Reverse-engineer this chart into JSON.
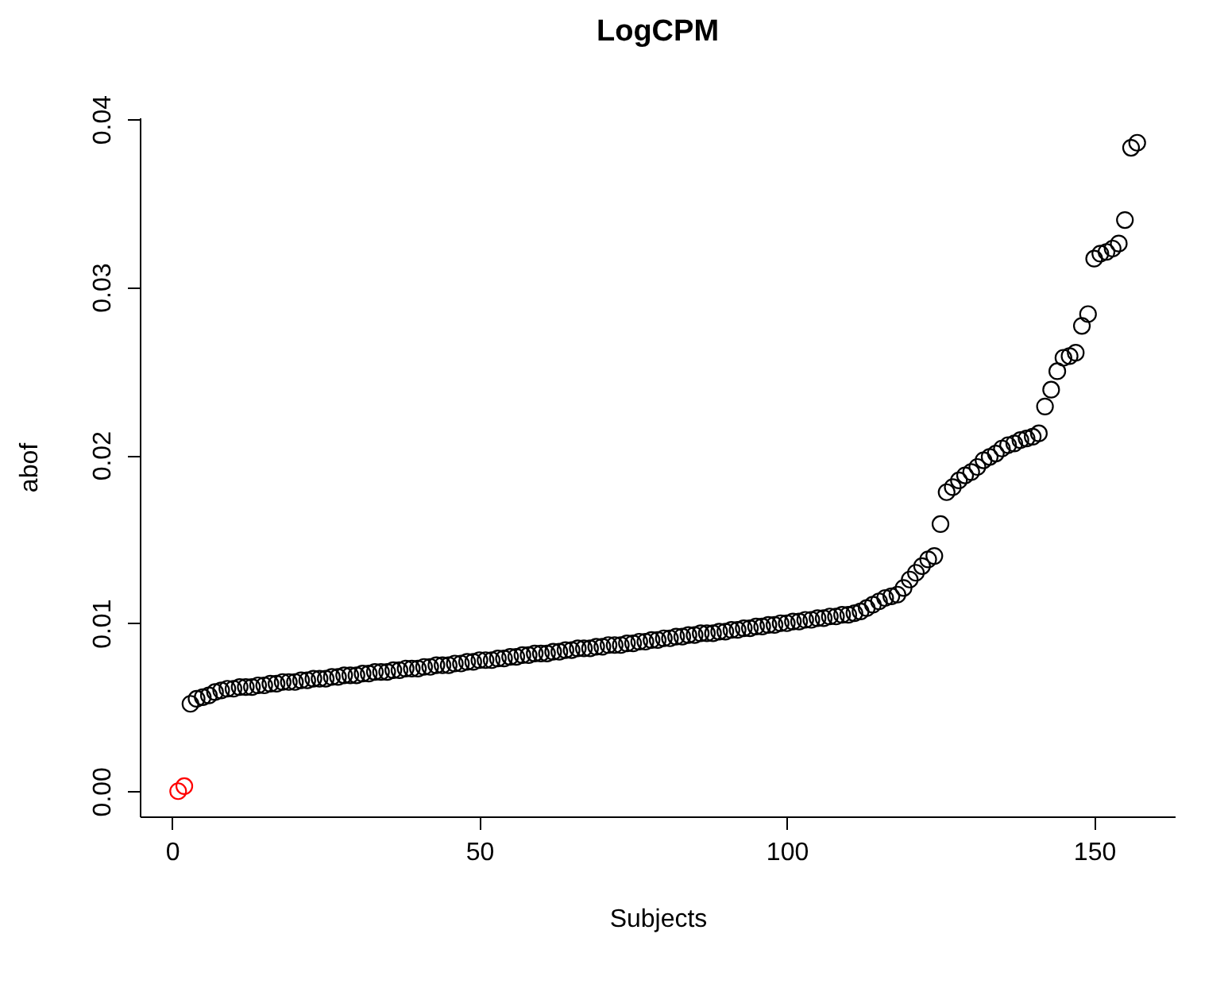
{
  "chart_data": {
    "type": "scatter",
    "title": "LogCPM",
    "xlabel": "Subjects",
    "ylabel": "abof",
    "marker": "circle",
    "grid": false,
    "xlim": [
      -5.24,
      163.24
    ],
    "ylim": [
      -0.0015,
      0.0401
    ],
    "xticks": [
      0,
      50,
      100,
      150
    ],
    "yticks": [
      {
        "value": 0,
        "label": "0.00"
      },
      {
        "value": 0.01,
        "label": "0.01"
      },
      {
        "value": 0.02,
        "label": "0.02"
      },
      {
        "value": 0.03,
        "label": "0.03"
      },
      {
        "value": 0.04,
        "label": "0.04"
      }
    ],
    "series": [
      {
        "color": "#ff0000",
        "x": [
          1,
          2
        ],
        "values": [
          0.0,
          0.0003
        ]
      },
      {
        "color": "#000000",
        "x": [
          3,
          4,
          5,
          6,
          7,
          8,
          9,
          10,
          11,
          12,
          13,
          14,
          15,
          16,
          17,
          18,
          19,
          20,
          21,
          22,
          23,
          24,
          25,
          26,
          27,
          28,
          29,
          30,
          31,
          32,
          33,
          34,
          35,
          36,
          37,
          38,
          39,
          40,
          41,
          42,
          43,
          44,
          45,
          46,
          47,
          48,
          49,
          50,
          51,
          52,
          53,
          54,
          55,
          56,
          57,
          58,
          59,
          60,
          61,
          62,
          63,
          64,
          65,
          66,
          67,
          68,
          69,
          70,
          71,
          72,
          73,
          74,
          75,
          76,
          77,
          78,
          79,
          80,
          81,
          82,
          83,
          84,
          85,
          86,
          87,
          88,
          89,
          90,
          91,
          92,
          93,
          94,
          95,
          96,
          97,
          98,
          99,
          100,
          101,
          102,
          103,
          104,
          105,
          106,
          107,
          108,
          109,
          110,
          111,
          112,
          113,
          114,
          115,
          116,
          117,
          118,
          119,
          120,
          121,
          122,
          123,
          124,
          125,
          126,
          127,
          128,
          129,
          130,
          131,
          132,
          133,
          134,
          135,
          136,
          137,
          138,
          139,
          140,
          141,
          142,
          143,
          144,
          145,
          146,
          147,
          148,
          149,
          150,
          151,
          152,
          153,
          154,
          155,
          156,
          157
        ],
        "values": [
          0.0052,
          0.0055,
          0.0056,
          0.0057,
          0.0059,
          0.006,
          0.0061,
          0.0061,
          0.0062,
          0.0062,
          0.0062,
          0.0063,
          0.0063,
          0.0064,
          0.0064,
          0.0065,
          0.0065,
          0.0065,
          0.0066,
          0.0066,
          0.0067,
          0.0067,
          0.0067,
          0.0068,
          0.0068,
          0.0069,
          0.0069,
          0.0069,
          0.007,
          0.007,
          0.0071,
          0.0071,
          0.0071,
          0.0072,
          0.0072,
          0.0073,
          0.0073,
          0.0073,
          0.0074,
          0.0074,
          0.0075,
          0.0075,
          0.0075,
          0.0076,
          0.0076,
          0.0077,
          0.0077,
          0.0078,
          0.0078,
          0.0078,
          0.0079,
          0.0079,
          0.008,
          0.008,
          0.0081,
          0.0081,
          0.0082,
          0.0082,
          0.0082,
          0.0083,
          0.0083,
          0.0084,
          0.0084,
          0.0085,
          0.0085,
          0.0085,
          0.0086,
          0.0086,
          0.0087,
          0.0087,
          0.0087,
          0.0088,
          0.0088,
          0.0089,
          0.0089,
          0.009,
          0.009,
          0.0091,
          0.0091,
          0.0092,
          0.0092,
          0.0093,
          0.0093,
          0.0094,
          0.0094,
          0.0094,
          0.0095,
          0.0095,
          0.0096,
          0.0096,
          0.0097,
          0.0097,
          0.0098,
          0.0098,
          0.0099,
          0.0099,
          0.01,
          0.01,
          0.0101,
          0.0101,
          0.0102,
          0.0102,
          0.0103,
          0.0103,
          0.0104,
          0.0104,
          0.0105,
          0.0105,
          0.0106,
          0.0107,
          0.0109,
          0.0111,
          0.0113,
          0.0115,
          0.0116,
          0.0117,
          0.0121,
          0.0126,
          0.013,
          0.0134,
          0.0138,
          0.014,
          0.0159,
          0.0178,
          0.0181,
          0.0185,
          0.0188,
          0.019,
          0.0193,
          0.0197,
          0.0199,
          0.0201,
          0.0204,
          0.0206,
          0.0207,
          0.0209,
          0.021,
          0.0211,
          0.0213,
          0.0229,
          0.0239,
          0.025,
          0.0258,
          0.0259,
          0.0261,
          0.0277,
          0.0284,
          0.0317,
          0.032,
          0.0321,
          0.0323,
          0.0326,
          0.034,
          0.0383,
          0.0386
        ]
      }
    ]
  }
}
